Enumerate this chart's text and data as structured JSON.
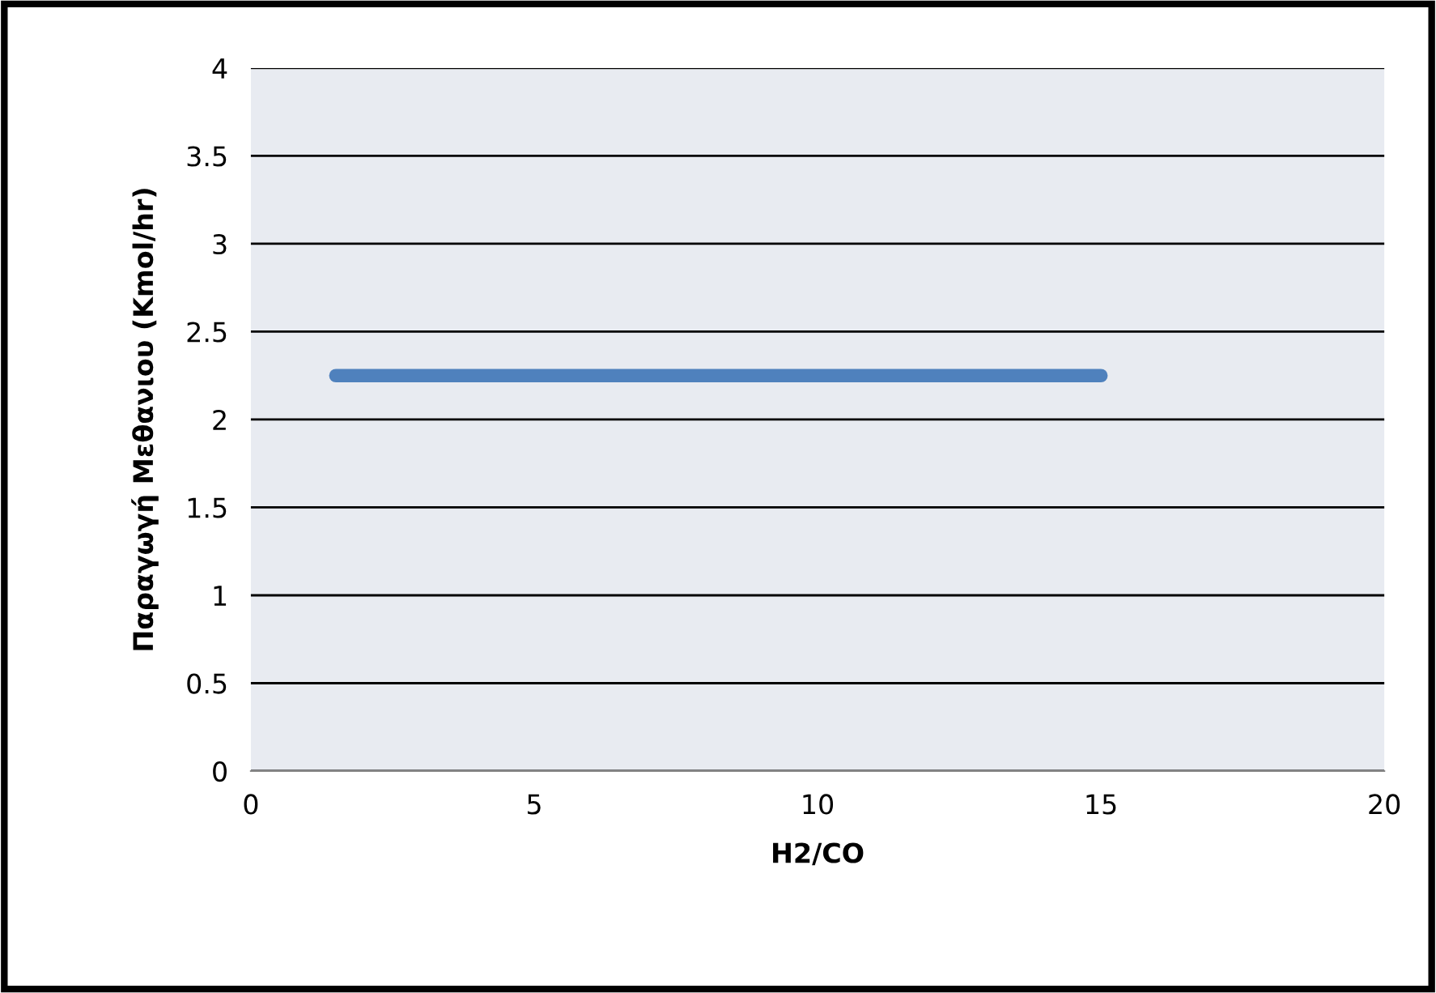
{
  "chart_data": {
    "type": "line",
    "xlabel": "H2/CO",
    "ylabel": "Παραγωγή Μεθανιου (Kmol/hr)",
    "series": [
      {
        "color": "#4f81bd",
        "x": [
          1.5,
          15
        ],
        "values": [
          2.25,
          2.25
        ]
      }
    ],
    "xlim": [
      0,
      20
    ],
    "xticks": [
      0,
      5,
      10,
      15,
      20
    ],
    "ylim": [
      0,
      4
    ],
    "yticks": [
      0,
      0.5,
      1,
      1.5,
      2,
      2.5,
      3,
      3.5,
      4
    ],
    "grid": "y",
    "marker": "none",
    "line_style": "solid"
  }
}
